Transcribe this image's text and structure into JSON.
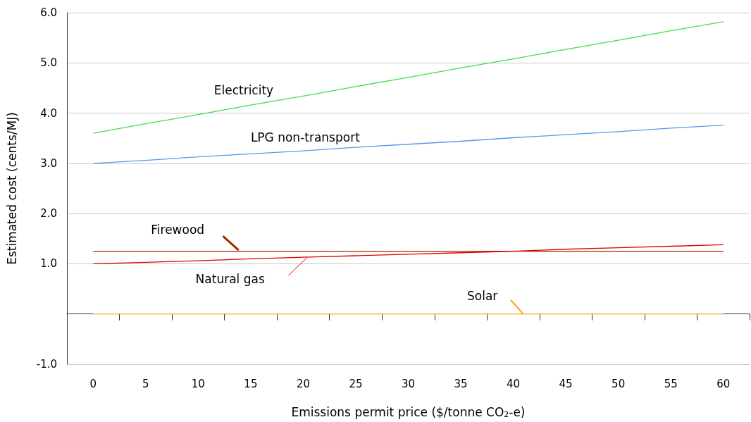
{
  "chart_data": {
    "type": "line",
    "xlabel": "Emissions permit price ($/tonne CO$_{2}$-e)",
    "ylabel": "Estimated cost (cents/MJ)",
    "categories": [
      "0",
      "5",
      "10",
      "15",
      "20",
      "25",
      "30",
      "35",
      "40",
      "45",
      "50",
      "55",
      "60"
    ],
    "series": [
      {
        "name": "Electricity",
        "color": "#44dd44",
        "values": [
          3.6,
          3.79,
          3.97,
          4.16,
          4.34,
          4.53,
          4.71,
          4.9,
          5.08,
          5.27,
          5.45,
          5.64,
          5.82
        ]
      },
      {
        "name": "LPG non-transport",
        "color": "#5599ee",
        "values": [
          3.0,
          3.06,
          3.13,
          3.19,
          3.25,
          3.32,
          3.38,
          3.44,
          3.51,
          3.57,
          3.63,
          3.7,
          3.76
        ]
      },
      {
        "name": "Firewood",
        "color": "#a02800",
        "values": [
          1.25,
          1.25,
          1.25,
          1.25,
          1.25,
          1.25,
          1.25,
          1.25,
          1.25,
          1.25,
          1.25,
          1.25,
          1.25
        ]
      },
      {
        "name": "Natural gas",
        "color": "#e00000",
        "values": [
          1.0,
          1.03,
          1.06,
          1.1,
          1.13,
          1.16,
          1.19,
          1.22,
          1.25,
          1.29,
          1.32,
          1.35,
          1.38
        ]
      },
      {
        "name": "Solar",
        "color": "#ffa020",
        "values": [
          0,
          0,
          0,
          0,
          0,
          0,
          0,
          0,
          0,
          0,
          0,
          0,
          0
        ]
      }
    ],
    "ylim": [
      -1,
      6
    ],
    "yticks": [
      {
        "value": -1,
        "label": "-1.0"
      },
      {
        "value": 0,
        "label": null
      },
      {
        "value": 1,
        "label": "1.0"
      },
      {
        "value": 2,
        "label": "2.0"
      },
      {
        "value": 3,
        "label": "3.0"
      },
      {
        "value": 4,
        "label": "4.0"
      },
      {
        "value": 5,
        "label": "5.0"
      },
      {
        "value": 6,
        "label": "6.0"
      }
    ],
    "grid": "y",
    "legend": false,
    "marker": "none",
    "line_style": "solid"
  }
}
